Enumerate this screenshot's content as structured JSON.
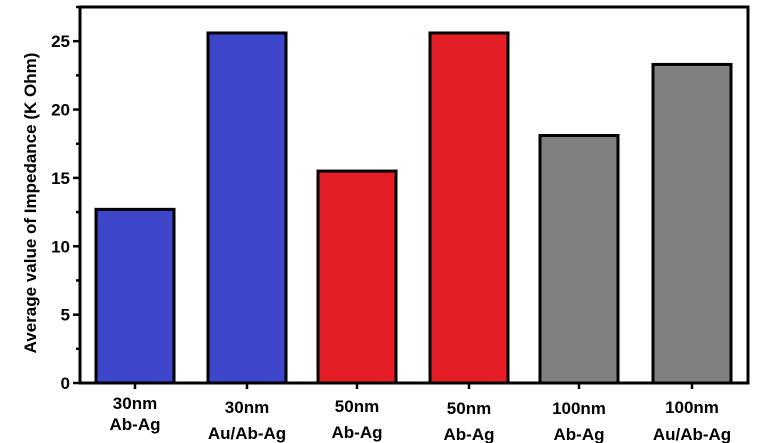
{
  "chart_data": {
    "type": "bar",
    "ylabel": "Average value of  Impedance (K Ohm)",
    "xlabel": "",
    "title": "",
    "ylim": [
      0,
      27.5
    ],
    "yticks": [
      0,
      5,
      10,
      15,
      20,
      25
    ],
    "categories": [
      [
        "30nm",
        "Ab-Ag"
      ],
      [
        "30nm",
        "Au/Ab-Ag"
      ],
      [
        "50nm",
        "Ab-Ag"
      ],
      [
        "50nm",
        "Ab-Ag"
      ],
      [
        "100nm",
        "Ab-Ag"
      ],
      [
        "100nm",
        "Au/Ab-Ag"
      ]
    ],
    "values": [
      12.7,
      25.6,
      15.5,
      25.6,
      18.1,
      23.3
    ],
    "colors": [
      "#3d45c8",
      "#3d45c8",
      "#e41e26",
      "#e41e26",
      "#808080",
      "#808080"
    ],
    "grid": false,
    "legend": "none"
  }
}
